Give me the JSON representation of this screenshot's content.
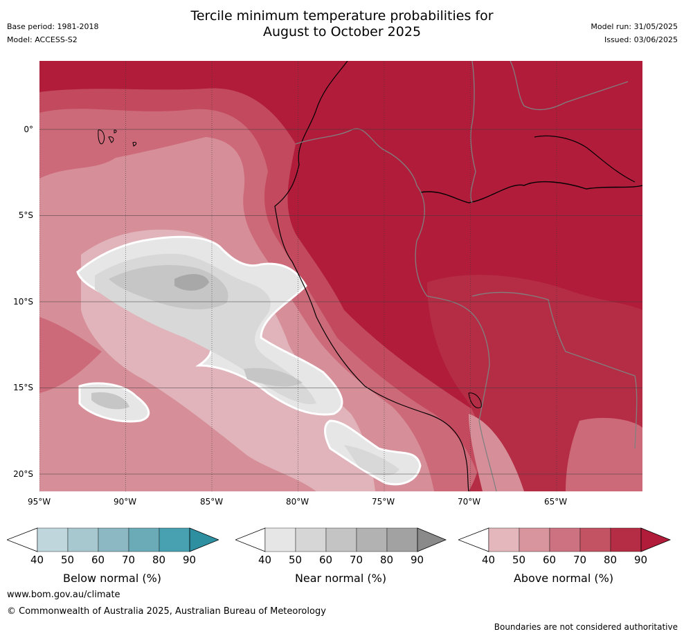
{
  "header": {
    "title_line1": "Tercile minimum temperature probabilities for",
    "title_line2": "August to October 2025",
    "base_period": "Base period: 1981-2018",
    "model": "Model: ACCESS-S2",
    "model_run": "Model run: 31/05/2025",
    "issued": "Issued: 03/06/2025"
  },
  "map": {
    "lon_ticks": [
      "95°W",
      "90°W",
      "85°W",
      "80°W",
      "75°W",
      "70°W",
      "65°W"
    ],
    "lat_ticks": [
      "0°",
      "5°S",
      "10°S",
      "15°S",
      "20°S"
    ],
    "colors": {
      "above_90": "#b01c3a",
      "above_80": "#c34a5e",
      "above_70": "#cd6a79",
      "above_60": "#d68f98",
      "above_50": "#e0b4ba",
      "near_40": "#e6e6e6",
      "near_50": "#d8d8d8",
      "near_60": "#c6c6c6",
      "near_70": "#a8a8a8",
      "coast": "#000000",
      "border": "#808080",
      "grid": "#3a3a3a"
    }
  },
  "colorbars": [
    {
      "label": "Below normal (%)",
      "ticks": [
        "40",
        "50",
        "60",
        "70",
        "80",
        "90"
      ],
      "colors": [
        "#bed6dc",
        "#a7c8cf",
        "#8bb8c3",
        "#6babb8",
        "#47a1b0",
        "#2d8fa0"
      ]
    },
    {
      "label": "Near normal (%)",
      "ticks": [
        "40",
        "50",
        "60",
        "70",
        "80",
        "90"
      ],
      "colors": [
        "#e6e6e6",
        "#d6d6d6",
        "#c4c4c4",
        "#b2b2b2",
        "#a2a2a2",
        "#8a8a8a"
      ]
    },
    {
      "label": "Above normal (%)",
      "ticks": [
        "40",
        "50",
        "60",
        "70",
        "80",
        "90"
      ],
      "colors": [
        "#e4b7bd",
        "#d8959e",
        "#cd7280",
        "#c35363",
        "#b52d45",
        "#b01c3a"
      ]
    }
  ],
  "footer": {
    "url": "www.bom.gov.au/climate",
    "copyright": "© Commonwealth of Australia 2025, Australian Bureau of Meteorology",
    "disclaimer": "Boundaries are not considered authoritative"
  }
}
